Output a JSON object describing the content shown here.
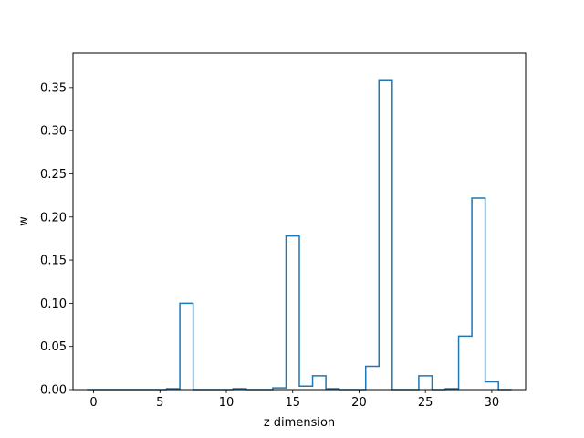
{
  "chart_data": {
    "type": "bar",
    "style": "step-outline",
    "title": "",
    "xlabel": "z dimension",
    "ylabel": "w",
    "xlim": [
      -1.55,
      32.55
    ],
    "ylim": [
      0,
      0.39
    ],
    "x_ticks": [
      0,
      5,
      10,
      15,
      20,
      25,
      30
    ],
    "y_ticks": [
      0.0,
      0.05,
      0.1,
      0.15,
      0.2,
      0.25,
      0.3,
      0.35
    ],
    "x_tick_labels": [
      "0",
      "5",
      "10",
      "15",
      "20",
      "25",
      "30"
    ],
    "y_tick_labels": [
      "0.00",
      "0.05",
      "0.10",
      "0.15",
      "0.20",
      "0.25",
      "0.30",
      "0.35"
    ],
    "x": [
      0,
      1,
      2,
      3,
      4,
      5,
      6,
      7,
      8,
      9,
      10,
      11,
      12,
      13,
      14,
      15,
      16,
      17,
      18,
      19,
      20,
      21,
      22,
      23,
      24,
      25,
      26,
      27,
      28,
      29,
      30,
      31
    ],
    "values": [
      0.0,
      0.0,
      0.0,
      0.0,
      0.0,
      0.0,
      0.001,
      0.1,
      0.0,
      0.0,
      0.0,
      0.001,
      0.0,
      0.0,
      0.002,
      0.178,
      0.004,
      0.016,
      0.001,
      0.0,
      0.0,
      0.027,
      0.358,
      0.0,
      0.0,
      0.016,
      0.0,
      0.001,
      0.062,
      0.222,
      0.009,
      0.0
    ],
    "line_color": "#1f77b4",
    "grid": false,
    "legend": "none"
  }
}
